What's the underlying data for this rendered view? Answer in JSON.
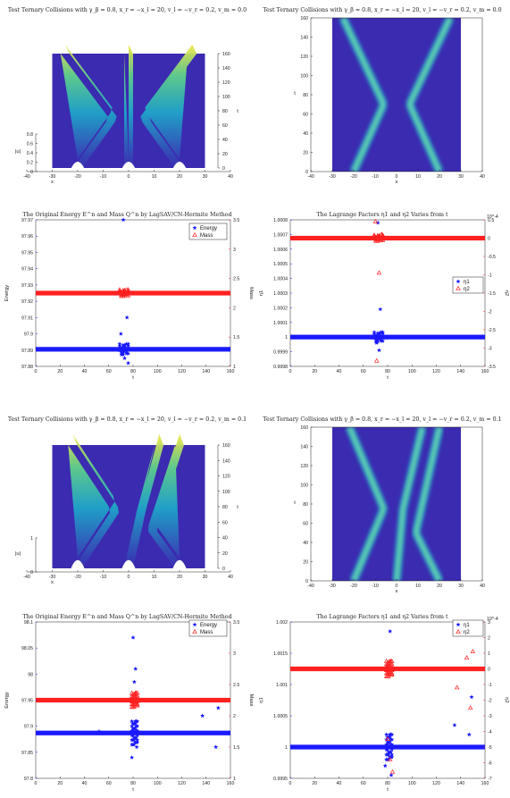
{
  "colors": {
    "blue": "#1a1aff",
    "red": "#ff2020",
    "field": "#3b2bb0",
    "peak": "#f2e54a",
    "axis": "#222222"
  },
  "chart_data": [
    {
      "type": "surface",
      "title": "Test Ternary Collisions with γ_β = 0.8, x_r = −x_l = 20, v_l = −v_r = 0.2, v_m = 0.0",
      "xlabel": "x",
      "ylabel": "t",
      "zlabel": "|u|",
      "xlim": [
        -40,
        40
      ],
      "ylim": [
        0,
        160
      ],
      "zlim": [
        0,
        0.8
      ],
      "xticks": [
        -40,
        -30,
        -20,
        -10,
        0,
        10,
        20,
        30,
        40
      ],
      "yticks": [
        0,
        20,
        40,
        60,
        80,
        100,
        120,
        140,
        160
      ],
      "zticks": [
        0,
        0.2,
        0.4,
        0.6,
        0.8
      ],
      "solitons": [
        {
          "name": "left",
          "t": [
            0,
            70,
            160
          ],
          "x": [
            -20,
            -6,
            -25
          ]
        },
        {
          "name": "middle",
          "t": [
            0,
            160
          ],
          "x": [
            0,
            0
          ]
        },
        {
          "name": "right",
          "t": [
            0,
            70,
            160
          ],
          "x": [
            20,
            6,
            25
          ]
        }
      ]
    },
    {
      "type": "heatmap",
      "title": "Test Ternary Collisions with γ_β = 0.8, x_r = −x_l = 20, v_l = −v_r = 0.2, v_m = 0.0",
      "xlabel": "x",
      "ylabel": "t",
      "xlim": [
        -40,
        40
      ],
      "ylim": [
        0,
        160
      ],
      "xticks": [
        -40,
        -30,
        -20,
        -10,
        0,
        10,
        20,
        30,
        40
      ],
      "yticks": [
        0,
        20,
        40,
        60,
        80,
        100,
        120,
        140,
        160
      ],
      "solitons": [
        {
          "name": "left",
          "t": [
            0,
            70,
            160
          ],
          "x": [
            -20,
            -6,
            -25
          ]
        },
        {
          "name": "middle",
          "t": [
            0,
            160
          ],
          "x": [
            0,
            0
          ]
        },
        {
          "name": "right",
          "t": [
            0,
            70,
            160
          ],
          "x": [
            20,
            6,
            25
          ]
        }
      ]
    },
    {
      "type": "scatter",
      "title": "The Original Energy E^n and Mass Q^n by LagSAV/CN-Hermite Method",
      "xlabel": "t",
      "ylabel": "Energy",
      "y2label": "Mass",
      "xlim": [
        0,
        160
      ],
      "ylim": [
        97.88,
        97.97
      ],
      "y2lim": [
        1,
        3.5
      ],
      "xticks": [
        0,
        20,
        40,
        60,
        80,
        100,
        120,
        140,
        160
      ],
      "yticks": [
        97.88,
        97.89,
        97.9,
        97.91,
        97.92,
        97.93,
        97.94,
        97.95,
        97.96,
        97.97
      ],
      "y2ticks": [
        1,
        1.5,
        2,
        2.5,
        3,
        3.5
      ],
      "legend_position": "top-right",
      "series": [
        {
          "name": "Energy",
          "axis": "left",
          "marker": "star",
          "baseline": 97.8905,
          "outliers": [
            [
              70,
              97.9
            ],
            [
              73,
              97.885
            ],
            [
              75,
              97.91
            ],
            [
              76,
              97.882
            ],
            [
              72,
              97.97
            ]
          ]
        },
        {
          "name": "Mass",
          "axis": "right",
          "marker": "triangle",
          "baseline": 2.25,
          "outliers": []
        }
      ]
    },
    {
      "type": "scatter",
      "title": "The Lagrange Factors η1 and η2 Varies from t",
      "xlabel": "t",
      "ylabel": "η1",
      "y2label": "η2",
      "y2exponent": "10^-4",
      "xlim": [
        0,
        160
      ],
      "ylim": [
        0.9998,
        1.0008
      ],
      "y2lim": [
        -3.5,
        0.5
      ],
      "xticks": [
        0,
        20,
        40,
        60,
        80,
        100,
        120,
        140,
        160
      ],
      "yticks": [
        0.9998,
        0.9999,
        1,
        1.0001,
        1.0002,
        1.0003,
        1.0004,
        1.0005,
        1.0006,
        1.0007,
        1.0008
      ],
      "yticklabels": [
        "0.9998",
        "0.9999",
        "1",
        "1.0001",
        "1.0002",
        "1.0003",
        "1.0004",
        "1.0005",
        "1.0006",
        "1.0007",
        "1.0008"
      ],
      "y2ticks": [
        -3.5,
        -3,
        -2.5,
        -2,
        -1.5,
        -1,
        -0.5,
        0,
        0.5
      ],
      "legend_position": "right",
      "series": [
        {
          "name": "η1",
          "axis": "left",
          "marker": "star",
          "baseline": 1.0,
          "outliers": [
            [
              72,
              1.00078
            ],
            [
              74,
              1.00019
            ],
            [
              73,
              0.99991
            ],
            [
              75,
              1.00003
            ],
            [
              71,
              0.99996
            ]
          ]
        },
        {
          "name": "η2",
          "axis": "right",
          "marker": "triangle",
          "baseline": 0,
          "outliers": [
            [
              73,
              -0.95
            ],
            [
              71,
              -3.35
            ],
            [
              70,
              0.45
            ],
            [
              75,
              0.1
            ]
          ]
        }
      ]
    },
    {
      "type": "surface",
      "title": "Test Ternary Collisions with γ_β = 0.8, x_r = −x_l = 20, v_l = −v_r = 0.2, v_m = 0.1",
      "xlabel": "x",
      "ylabel": "t",
      "zlabel": "|u|",
      "xlim": [
        -40,
        40
      ],
      "ylim": [
        0,
        160
      ],
      "zlim": [
        0,
        1
      ],
      "xticks": [
        -40,
        -30,
        -20,
        -10,
        0,
        10,
        20,
        30,
        40
      ],
      "yticks": [
        0,
        20,
        40,
        60,
        80,
        100,
        120,
        140,
        160
      ],
      "zticks": [
        0,
        1
      ],
      "solitons": [
        {
          "name": "left",
          "t": [
            0,
            75,
            160
          ],
          "x": [
            -20,
            -5,
            -22
          ]
        },
        {
          "name": "middle",
          "t": [
            0,
            75,
            160
          ],
          "x": [
            0,
            5,
            12
          ]
        },
        {
          "name": "right",
          "t": [
            0,
            50,
            160
          ],
          "x": [
            20,
            9,
            20
          ]
        }
      ]
    },
    {
      "type": "heatmap",
      "title": "Test Ternary Collisions with γ_β = 0.8, x_r = −x_l = 20, v_l = −v_r = 0.2, v_m = 0.1",
      "xlabel": "x",
      "ylabel": "t",
      "xlim": [
        -40,
        40
      ],
      "ylim": [
        0,
        160
      ],
      "xticks": [
        -40,
        -30,
        -20,
        -10,
        0,
        10,
        20,
        30,
        40
      ],
      "yticks": [
        0,
        20,
        40,
        60,
        80,
        100,
        120,
        140,
        160
      ],
      "solitons": [
        {
          "name": "left",
          "t": [
            0,
            75,
            160
          ],
          "x": [
            -20,
            -6,
            -22
          ]
        },
        {
          "name": "middle",
          "t": [
            0,
            75,
            160
          ],
          "x": [
            0,
            3,
            12
          ]
        },
        {
          "name": "right",
          "t": [
            0,
            50,
            160
          ],
          "x": [
            20,
            9,
            20
          ]
        }
      ]
    },
    {
      "type": "scatter",
      "title": "The Original Energy E^n and Mass Q^n by LagSAV/CN-Hermite Method",
      "xlabel": "t",
      "ylabel": "Energy",
      "y2label": "Mass",
      "xlim": [
        0,
        160
      ],
      "ylim": [
        97.8,
        98.1
      ],
      "y2lim": [
        1,
        3.5
      ],
      "xticks": [
        0,
        20,
        40,
        60,
        80,
        100,
        120,
        140,
        160
      ],
      "yticks": [
        97.8,
        97.85,
        97.9,
        97.95,
        98,
        98.05,
        98.1
      ],
      "y2ticks": [
        1,
        1.5,
        2,
        2.5,
        3,
        3.5
      ],
      "legend_position": "top-right",
      "series": [
        {
          "name": "Energy",
          "axis": "left",
          "marker": "star",
          "baseline": 97.887,
          "outliers": [
            [
              80,
              98.07
            ],
            [
              82,
              98.01
            ],
            [
              81,
              97.985
            ],
            [
              79,
              97.84
            ],
            [
              83,
              97.86
            ],
            [
              150,
              97.935
            ],
            [
              137,
              97.92
            ],
            [
              148,
              97.86
            ],
            [
              52,
              97.89
            ]
          ]
        },
        {
          "name": "Mass",
          "axis": "right",
          "marker": "triangle",
          "baseline": 2.25,
          "outliers": []
        }
      ]
    },
    {
      "type": "scatter",
      "title": "The Lagrange Factors η1 and η2 Varies from t",
      "xlabel": "t",
      "ylabel": "η1",
      "y2label": "η2",
      "y2exponent": "10^-4",
      "xlim": [
        0,
        160
      ],
      "ylim": [
        0.9995,
        1.002
      ],
      "y2lim": [
        -7,
        3
      ],
      "xticks": [
        0,
        20,
        40,
        60,
        80,
        100,
        120,
        140,
        160
      ],
      "yticks": [
        0.9995,
        1,
        1.0005,
        1.001,
        1.0015,
        1.002
      ],
      "yticklabels": [
        "0.9995",
        "1",
        "1.0005",
        "1.001",
        "1.0015",
        "1.002"
      ],
      "y2ticks": [
        -7,
        -6,
        -5,
        -4,
        -3,
        -2,
        -1,
        0,
        1,
        2,
        3
      ],
      "legend_position": "top-right",
      "series": [
        {
          "name": "η1",
          "axis": "left",
          "marker": "star",
          "baseline": 1.0,
          "outliers": [
            [
              82,
              1.00185
            ],
            [
              80,
              1.0013
            ],
            [
              83,
              0.99955
            ],
            [
              78,
              0.9997
            ],
            [
              135,
              1.00035
            ],
            [
              149,
              1.0008
            ],
            [
              147,
              1.0002
            ]
          ]
        },
        {
          "name": "η2",
          "axis": "right",
          "marker": "triangle",
          "baseline": 0,
          "outliers": [
            [
              82,
              -5.8
            ],
            [
              84,
              -6.6
            ],
            [
              80,
              -4.5
            ],
            [
              150,
              1.1
            ],
            [
              145,
              0.7
            ],
            [
              137,
              -1.2
            ],
            [
              148,
              -2.5
            ]
          ]
        }
      ]
    }
  ]
}
